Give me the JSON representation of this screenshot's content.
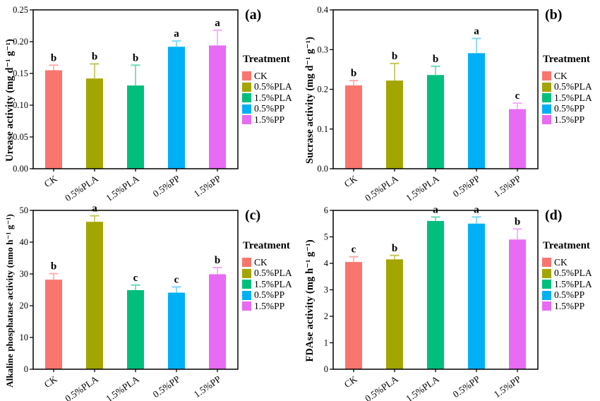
{
  "figure": {
    "background": "#ffffff",
    "legend_title": "Treatment",
    "treatments": [
      "CK",
      "0.5%PLA",
      "1.5%PLA",
      "0.5%PP",
      "1.5%PP"
    ],
    "bar_colors": [
      "#F8766D",
      "#A3A500",
      "#00BF7D",
      "#00B0F6",
      "#E76BF3"
    ],
    "error_colors": [
      "#FBAFAA",
      "#C6C75B",
      "#6FD9B7",
      "#7FD7FA",
      "#F0ADF8"
    ],
    "axis_color": "#000000",
    "text_color": "#000000"
  },
  "chart_data": [
    {
      "type": "bar",
      "panel_label": "(a)",
      "title": "",
      "xlabel": "",
      "ylabel": "Urease activity (mg d⁻¹ g⁻¹)",
      "categories": [
        "CK",
        "0.5%PLA",
        "1.5%PLA",
        "0.5%PP",
        "1.5%PP"
      ],
      "values": [
        0.155,
        0.142,
        0.131,
        0.192,
        0.194
      ],
      "errors": [
        0.008,
        0.023,
        0.032,
        0.009,
        0.024
      ],
      "sig_letters": [
        "b",
        "b",
        "b",
        "a",
        "a"
      ],
      "ylim": [
        0,
        0.25
      ],
      "yticks": [
        0,
        0.05,
        0.1,
        0.15,
        0.2,
        0.25
      ],
      "ytick_labels": [
        "0.00",
        "0.05",
        "0.10",
        "0.15",
        "0.20",
        "0.25"
      ],
      "grid": false,
      "legend_position": "right"
    },
    {
      "type": "bar",
      "panel_label": "(b)",
      "title": "",
      "xlabel": "",
      "ylabel": "Sucrase activity (mg d⁻¹ g⁻¹)",
      "categories": [
        "CK",
        "0.5%PLA",
        "1.5%PLA",
        "0.5%PP",
        "1.5%PP"
      ],
      "values": [
        0.21,
        0.222,
        0.236,
        0.291,
        0.15
      ],
      "errors": [
        0.012,
        0.043,
        0.022,
        0.037,
        0.015
      ],
      "sig_letters": [
        "b",
        "b",
        "b",
        "a",
        "c"
      ],
      "ylim": [
        0,
        0.4
      ],
      "yticks": [
        0,
        0.1,
        0.2,
        0.3,
        0.4
      ],
      "ytick_labels": [
        "0.0",
        "0.1",
        "0.2",
        "0.3",
        "0.4"
      ],
      "grid": false,
      "legend_position": "right"
    },
    {
      "type": "bar",
      "panel_label": "(c)",
      "title": "",
      "xlabel": "",
      "ylabel": "Alkaline phosphatase activity (nmo h⁻¹ g⁻¹)",
      "categories": [
        "CK",
        "0.5%PLA",
        "1.5%PLA",
        "0.5%PP",
        "1.5%PP"
      ],
      "values": [
        28.2,
        46.4,
        24.9,
        24.1,
        29.9
      ],
      "errors": [
        1.9,
        1.9,
        1.6,
        1.8,
        2.1
      ],
      "sig_letters": [
        "b",
        "a",
        "c",
        "c",
        "b"
      ],
      "ylim": [
        0,
        50
      ],
      "yticks": [
        0,
        10,
        20,
        30,
        40,
        50
      ],
      "ytick_labels": [
        "0",
        "10",
        "20",
        "30",
        "40",
        "50"
      ],
      "grid": false,
      "legend_position": "right"
    },
    {
      "type": "bar",
      "panel_label": "(d)",
      "title": "",
      "xlabel": "",
      "ylabel": "FDAse activity (mg h⁻¹ g⁻¹)",
      "categories": [
        "CK",
        "0.5%PLA",
        "1.5%PLA",
        "0.5%PP",
        "1.5%PP"
      ],
      "values": [
        4.05,
        4.15,
        5.6,
        5.5,
        4.9
      ],
      "errors": [
        0.2,
        0.15,
        0.15,
        0.25,
        0.4
      ],
      "sig_letters": [
        "c",
        "b",
        "a",
        "a",
        "b"
      ],
      "ylim": [
        0,
        6
      ],
      "yticks": [
        0,
        1,
        2,
        3,
        4,
        5,
        6
      ],
      "ytick_labels": [
        "0",
        "1",
        "2",
        "3",
        "4",
        "5",
        "6"
      ],
      "grid": false,
      "legend_position": "right"
    }
  ]
}
